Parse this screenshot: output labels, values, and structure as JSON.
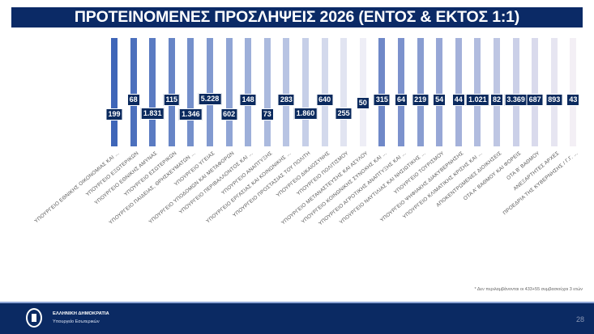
{
  "chart_data": {
    "type": "bar",
    "title": "ΠΡΟΤΕΙΝΟΜΕΝΕΣ ΠΡΟΣΛΗΨΕΙΣ 2026 (ΕΝΤΟΣ & ΕΚΤΟΣ 1:1)",
    "xlabel": "",
    "ylabel": "",
    "categories": [
      "ΥΠΟΥΡΓΕΙΟ ΕΘΝΙΚΗΣ ΟΙΚΟΝΟΜΙΑΣ ΚΑΙ ...",
      "ΥΠΟΥΡΓΕΙΟ ΕΞΩΤΕΡΙΚΩΝ",
      "ΥΠΟΥΡΓΕΙΟ ΕΘΝΙΚΗΣ ΑΜΥΝΑΣ",
      "ΥΠΟΥΡΓΕΙΟ ΕΣΩΤΕΡΙΚΩΝ",
      "ΥΠΟΥΡΓΕΙΟ ΠΑΙΔΕΙΑΣ, ΘΡΗΣΚΕΥΜΑΤΩΝ ...",
      "ΥΠΟΥΡΓΕΙΟ ΥΓΕΙΑΣ",
      "ΥΠΟΥΡΓΕΙΟ ΥΠΟΔΟΜΩΝ ΚΑΙ ΜΕΤΑΦΟΡΩΝ",
      "ΥΠΟΥΡΓΕΙΟ ΠΕΡΙΒΑΛΛΟΝΤΟΣ ΚΑΙ ...",
      "ΥΠΟΥΡΓΕΙΟ ΑΝΑΠΤΥΞΗΣ",
      "ΥΠΟΥΡΓΕΙΟ ΕΡΓΑΣΙΑΣ ΚΑΙ ΚΟΙΝΩΝΙΚΗΣ ...",
      "ΥΠΟΥΡΓΕΙΟ ΠΡΟΣΤΑΣΙΑΣ ΤΟΥ ΠΟΛΙΤΗ",
      "ΥΠΟΥΡΓΕΙΟ ΔΙΚΑΙΟΣΥΝΗΣ",
      "ΥΠΟΥΡΓΕΙΟ ΠΟΛΙΤΙΣΜΟΥ",
      "ΥΠΟΥΡΓΕΙΟ ΜΕΤΑΝΑΣΤΕΥΣΗΣ ΚΑΙ ΑΣΥΛΟΥ",
      "ΥΠΟΥΡΓΕΙΟ ΚΟΙΝΩΝΙΚΗΣ ΣΥΝΟΧΗΣ ΚΑΙ ...",
      "ΥΠΟΥΡΓΕΙΟ ΑΓΡΟΤΙΚΗΣ ΑΝΑΠΤΥΞΗΣ ΚΑΙ ...",
      "ΥΠΟΥΡΓΕΙΟ ΝΑΥΤΙΛΙΑΣ ΚΑΙ ΝΗΣΙΩΤΙΚΗΣ ...",
      "ΥΠΟΥΡΓΕΙΟ ΤΟΥΡΙΣΜΟΥ",
      "ΥΠΟΥΡΓΕΙΟ ΨΗΦΙΑΚΗΣ ΔΙΑΚΥΒΕΡΝΗΣΗΣ",
      "ΥΠΟΥΡΓΕΙΟ ΚΛΙΜΑΤΙΚΗΣ ΚΡΙΣΗΣ ΚΑΙ ...",
      "ΑΠΟΚΕΝΤΡΩΜΕΝΕΣ ΔΙΟΙΚΗΣΕΙΣ",
      "ΟΤΑ Α' ΒΑΘΜΟΥ ΚΑΙ ΦΟΡΕΙΣ",
      "ΟΤΑ Β' ΒΑΘΜΟΥ",
      "ΑΝΕΞΑΡΤΗΤΕΣ ΑΡΧΕΣ",
      "ΠΡΟΕΔΡΙΑ ΤΗΣ ΚΥΒΕΡΝΗΣΗΣ / Γ.Γ. ..."
    ],
    "values": [
      199,
      68,
      1831,
      115,
      1346,
      5228,
      602,
      148,
      73,
      283,
      1860,
      640,
      255,
      50,
      315,
      64,
      219,
      54,
      44,
      1021,
      82,
      3369,
      687,
      893,
      43
    ],
    "value_labels": [
      "199",
      "68",
      "1.831",
      "115",
      "1.346",
      "5.228",
      "602",
      "148",
      "73",
      "283",
      "1.860",
      "640",
      "255",
      "50",
      "315",
      "64",
      "219",
      "54",
      "44",
      "1.021",
      "82",
      "3.369",
      "687",
      "893",
      "43"
    ],
    "colors": {
      "start_a": "#3f66b8",
      "end_a": "#eeeef6",
      "start_b": "#6f88c8",
      "end_b": "#f3eff5",
      "label_bg": "#0b2a5e"
    },
    "grid": false,
    "legend": "none"
  },
  "footnote": "* Δεν περιλαμβάνονται οι 433+55 συμβασιούχοι 3 ετών",
  "footer": {
    "org": "ΕΛΛΗΝΙΚΗ ΔΗΜΟΚΡΑΤΙΑ",
    "ministry": "Υπουργείο Εσωτερικών",
    "page_number": "28"
  }
}
